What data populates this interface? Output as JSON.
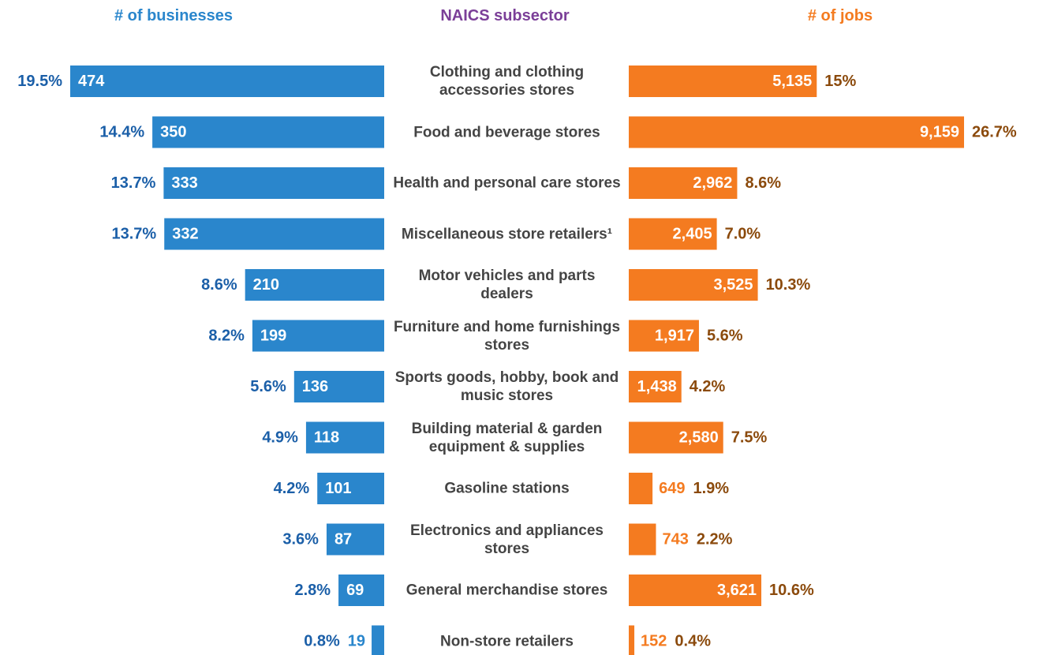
{
  "chart_data": {
    "type": "butterfly",
    "left_title": "# of businesses",
    "center_title": "NAICS subsector",
    "right_title": "# of jobs",
    "categories": [
      "Clothing and clothing accessories stores",
      "Food and beverage stores",
      "Health and personal care stores",
      "Miscellaneous store retailers¹",
      "Motor vehicles and parts dealers",
      "Furniture and home furnishings stores",
      "Sports goods, hobby, book and music stores",
      "Building material & garden equipment & supplies",
      "Gasoline stations",
      "Electronics and appliances stores",
      "General merchandise stores",
      "Non-store retailers"
    ],
    "series": [
      {
        "name": "# of businesses",
        "color": "#2a86cc",
        "label_color": "#1b5fa8",
        "values": [
          474,
          350,
          333,
          332,
          210,
          199,
          136,
          118,
          101,
          87,
          69,
          19
        ],
        "share_labels": [
          "19.5%",
          "14.4%",
          "13.7%",
          "13.7%",
          "8.6%",
          "8.2%",
          "5.6%",
          "4.9%",
          "4.2%",
          "3.6%",
          "2.8%",
          "0.8%"
        ]
      },
      {
        "name": "# of jobs",
        "color": "#f47b20",
        "label_color": "#8b4a0c",
        "values": [
          5135,
          9159,
          2962,
          2405,
          3525,
          1917,
          1438,
          2580,
          649,
          743,
          3621,
          152
        ],
        "value_labels": [
          "5,135",
          "9,159",
          "2,962",
          "2,405",
          "3,525",
          "1,917",
          "1,438",
          "2,580",
          "649",
          "743",
          "3,621",
          "152"
        ],
        "share_labels": [
          "15%",
          "26.7%",
          "8.6%",
          "7.0%",
          "10.3%",
          "5.6%",
          "4.2%",
          "7.5%",
          "1.9%",
          "2.2%",
          "10.6%",
          "0.4%"
        ]
      }
    ],
    "title_colors": [
      "#2a86cc",
      "#7b3f98",
      "#f47b20"
    ]
  }
}
